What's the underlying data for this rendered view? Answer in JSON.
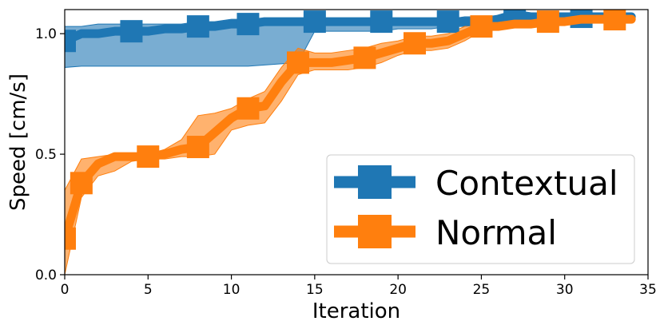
{
  "chart_data": {
    "type": "line",
    "title": "",
    "xlabel": "Iteration",
    "ylabel": "Speed [cm/s]",
    "xlim": [
      0,
      35
    ],
    "ylim": [
      0,
      1.1
    ],
    "xticks": [
      0,
      5,
      10,
      15,
      20,
      25,
      30,
      35
    ],
    "yticks": [
      0.0,
      0.5,
      1.0
    ],
    "xtick_labels": [
      "0",
      "5",
      "10",
      "15",
      "20",
      "25",
      "30",
      "35"
    ],
    "ytick_labels": [
      "0.0",
      "0.5",
      "1.0"
    ],
    "grid": false,
    "legend_position": "lower-right",
    "series": [
      {
        "name": "Contextual",
        "color": "#1f77b4",
        "x": [
          0,
          1,
          2,
          3,
          4,
          5,
          6,
          7,
          8,
          9,
          10,
          11,
          12,
          13,
          14,
          15,
          16,
          17,
          18,
          19,
          20,
          21,
          22,
          23,
          24,
          25,
          26,
          27,
          28,
          29,
          30,
          31,
          32,
          33,
          34
        ],
        "values": [
          0.97,
          1.0,
          1.0,
          1.01,
          1.01,
          1.01,
          1.02,
          1.02,
          1.03,
          1.03,
          1.04,
          1.04,
          1.05,
          1.05,
          1.05,
          1.05,
          1.05,
          1.05,
          1.05,
          1.05,
          1.05,
          1.05,
          1.05,
          1.05,
          1.05,
          1.05,
          1.06,
          1.08,
          1.07,
          1.07,
          1.07,
          1.07,
          1.07,
          1.07,
          1.07
        ],
        "lower": [
          0.86,
          0.865,
          0.865,
          0.865,
          0.865,
          0.865,
          0.865,
          0.865,
          0.865,
          0.865,
          0.865,
          0.865,
          0.87,
          0.875,
          0.88,
          1.01,
          1.01,
          1.01,
          1.01,
          1.01,
          1.02,
          1.02,
          1.02,
          1.03,
          1.03,
          1.04,
          1.05,
          1.06,
          1.06,
          1.06,
          1.06,
          1.06,
          1.06,
          1.06,
          1.06
        ],
        "upper": [
          1.03,
          1.03,
          1.04,
          1.04,
          1.04,
          1.04,
          1.04,
          1.04,
          1.05,
          1.05,
          1.06,
          1.06,
          1.06,
          1.06,
          1.06,
          1.06,
          1.06,
          1.06,
          1.06,
          1.06,
          1.06,
          1.06,
          1.06,
          1.06,
          1.07,
          1.07,
          1.07,
          1.09,
          1.08,
          1.08,
          1.08,
          1.08,
          1.08,
          1.08,
          1.08
        ],
        "marker_x": [
          0,
          4,
          8,
          11,
          15,
          19,
          23,
          27,
          31
        ],
        "marker_values": [
          0.97,
          1.01,
          1.03,
          1.04,
          1.05,
          1.05,
          1.05,
          1.08,
          1.07
        ]
      },
      {
        "name": "Normal",
        "color": "#ff7f0e",
        "x": [
          0,
          1,
          2,
          3,
          4,
          5,
          6,
          7,
          8,
          9,
          10,
          11,
          12,
          13,
          14,
          15,
          16,
          17,
          18,
          19,
          20,
          21,
          22,
          23,
          24,
          25,
          26,
          27,
          28,
          29,
          30,
          31,
          32,
          33,
          34
        ],
        "values": [
          0.15,
          0.38,
          0.46,
          0.49,
          0.49,
          0.49,
          0.5,
          0.52,
          0.53,
          0.59,
          0.65,
          0.69,
          0.7,
          0.8,
          0.88,
          0.88,
          0.88,
          0.89,
          0.9,
          0.92,
          0.94,
          0.96,
          0.96,
          0.97,
          1.0,
          1.03,
          1.03,
          1.04,
          1.04,
          1.05,
          1.05,
          1.06,
          1.06,
          1.06,
          1.06
        ],
        "lower": [
          0.0,
          0.32,
          0.41,
          0.43,
          0.47,
          0.48,
          0.48,
          0.49,
          0.49,
          0.5,
          0.6,
          0.62,
          0.63,
          0.72,
          0.83,
          0.85,
          0.85,
          0.85,
          0.86,
          0.88,
          0.91,
          0.93,
          0.93,
          0.94,
          0.97,
          1.01,
          1.02,
          1.03,
          1.03,
          1.04,
          1.04,
          1.05,
          1.05,
          1.05,
          1.05
        ],
        "upper": [
          0.35,
          0.48,
          0.49,
          0.5,
          0.5,
          0.5,
          0.52,
          0.56,
          0.66,
          0.67,
          0.69,
          0.73,
          0.76,
          0.86,
          0.94,
          0.92,
          0.92,
          0.93,
          0.94,
          0.96,
          0.97,
          0.99,
          0.99,
          1.0,
          1.03,
          1.05,
          1.05,
          1.05,
          1.06,
          1.06,
          1.06,
          1.07,
          1.07,
          1.07,
          1.07
        ],
        "marker_x": [
          0,
          1,
          5,
          8,
          11,
          14,
          18,
          21,
          25,
          29,
          33
        ],
        "marker_values": [
          0.15,
          0.38,
          0.49,
          0.53,
          0.69,
          0.88,
          0.9,
          0.96,
          1.03,
          1.05,
          1.06
        ]
      }
    ]
  }
}
